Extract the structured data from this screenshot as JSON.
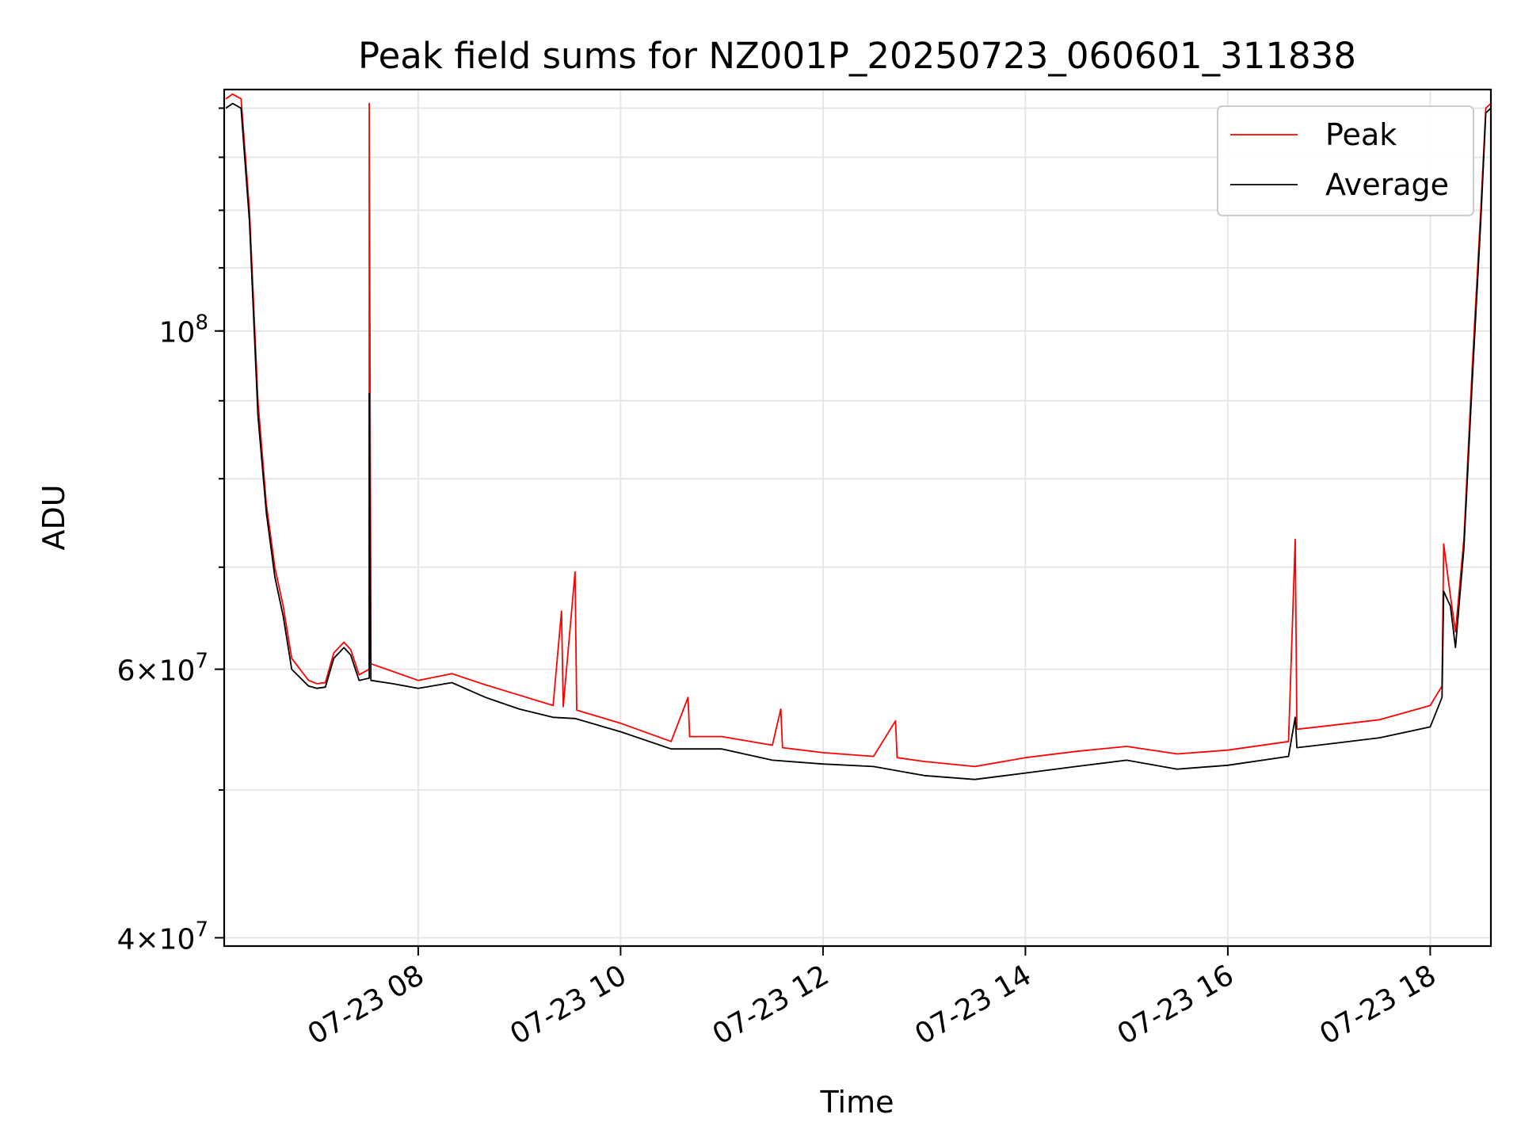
{
  "chart_data": {
    "type": "line",
    "title": "Peak field sums for NZ001P_20250723_060601_311838",
    "xlabel": "Time",
    "ylabel": "ADU",
    "y_scale": "log",
    "grid": true,
    "legend_position": "top-right",
    "x_range": [
      "2025-07-23 06:05",
      "2025-07-23 18:36"
    ],
    "y_range": [
      39500000,
      144000000
    ],
    "x_ticks": [
      "07-23 08",
      "07-23 10",
      "07-23 12",
      "07-23 14",
      "07-23 16",
      "07-23 18"
    ],
    "y_ticks": [
      {
        "value": 40000000,
        "mantissa": "4",
        "exponent": "7"
      },
      {
        "value": 60000000,
        "mantissa": "6",
        "exponent": "7"
      },
      {
        "value": 100000000,
        "base": "10",
        "exponent": "8"
      }
    ],
    "series": [
      {
        "name": "Peak",
        "color": "#ff0000",
        "points": [
          [
            "07-23 06:06",
            142000000
          ],
          [
            "07-23 06:10",
            143000000
          ],
          [
            "07-23 06:15",
            142000000
          ],
          [
            "07-23 06:20",
            120000000
          ],
          [
            "07-23 06:25",
            90000000
          ],
          [
            "07-23 06:30",
            77000000
          ],
          [
            "07-23 06:35",
            70000000
          ],
          [
            "07-23 06:40",
            66000000
          ],
          [
            "07-23 06:45",
            61000000
          ],
          [
            "07-23 06:55",
            59000000
          ],
          [
            "07-23 07:00",
            58700000
          ],
          [
            "07-23 07:05",
            58800000
          ],
          [
            "07-23 07:10",
            61500000
          ],
          [
            "07-23 07:16",
            62500000
          ],
          [
            "07-23 07:20",
            61800000
          ],
          [
            "07-23 07:25",
            59500000
          ],
          [
            "07-23 07:31",
            60000000
          ],
          [
            "07-23 07:31",
            141000000
          ],
          [
            "07-23 07:32",
            60500000
          ],
          [
            "07-23 07:45",
            59800000
          ],
          [
            "07-23 08:00",
            59000000
          ],
          [
            "07-23 08:20",
            59600000
          ],
          [
            "07-23 08:40",
            58600000
          ],
          [
            "07-23 09:00",
            57700000
          ],
          [
            "07-23 09:20",
            56800000
          ],
          [
            "07-23 09:25",
            65500000
          ],
          [
            "07-23 09:26",
            56700000
          ],
          [
            "07-23 09:33",
            69500000
          ],
          [
            "07-23 09:34",
            56400000
          ],
          [
            "07-23 10:00",
            55300000
          ],
          [
            "07-23 10:30",
            53800000
          ],
          [
            "07-23 10:40",
            57500000
          ],
          [
            "07-23 10:41",
            54200000
          ],
          [
            "07-23 11:00",
            54200000
          ],
          [
            "07-23 11:30",
            53500000
          ],
          [
            "07-23 11:35",
            56500000
          ],
          [
            "07-23 11:36",
            53300000
          ],
          [
            "07-23 12:00",
            52900000
          ],
          [
            "07-23 12:30",
            52600000
          ],
          [
            "07-23 12:43",
            55500000
          ],
          [
            "07-23 12:44",
            52500000
          ],
          [
            "07-23 13:00",
            52200000
          ],
          [
            "07-23 13:30",
            51800000
          ],
          [
            "07-23 14:00",
            52500000
          ],
          [
            "07-23 14:30",
            53000000
          ],
          [
            "07-23 15:00",
            53400000
          ],
          [
            "07-23 15:30",
            52800000
          ],
          [
            "07-23 16:00",
            53100000
          ],
          [
            "07-23 16:36",
            53800000
          ],
          [
            "07-23 16:40",
            73000000
          ],
          [
            "07-23 16:41",
            54800000
          ],
          [
            "07-23 17:00",
            55100000
          ],
          [
            "07-23 17:30",
            55600000
          ],
          [
            "07-23 18:00",
            56800000
          ],
          [
            "07-23 18:07",
            58500000
          ],
          [
            "07-23 18:08",
            72500000
          ],
          [
            "07-23 18:12",
            67000000
          ],
          [
            "07-23 18:15",
            63500000
          ],
          [
            "07-23 18:20",
            73000000
          ],
          [
            "07-23 18:25",
            95000000
          ],
          [
            "07-23 18:30",
            120000000
          ],
          [
            "07-23 18:33",
            140000000
          ],
          [
            "07-23 18:36",
            141000000
          ]
        ]
      },
      {
        "name": "Average",
        "color": "#000000",
        "points": [
          [
            "07-23 06:06",
            140000000
          ],
          [
            "07-23 06:10",
            141000000
          ],
          [
            "07-23 06:15",
            140000000
          ],
          [
            "07-23 06:20",
            118000000
          ],
          [
            "07-23 06:25",
            88000000
          ],
          [
            "07-23 06:30",
            76000000
          ],
          [
            "07-23 06:35",
            69000000
          ],
          [
            "07-23 06:40",
            65000000
          ],
          [
            "07-23 06:45",
            60000000
          ],
          [
            "07-23 06:55",
            58500000
          ],
          [
            "07-23 07:00",
            58300000
          ],
          [
            "07-23 07:05",
            58400000
          ],
          [
            "07-23 07:10",
            61000000
          ],
          [
            "07-23 07:16",
            62000000
          ],
          [
            "07-23 07:20",
            61300000
          ],
          [
            "07-23 07:25",
            59000000
          ],
          [
            "07-23 07:31",
            59200000
          ],
          [
            "07-23 07:31",
            91000000
          ],
          [
            "07-23 07:32",
            59000000
          ],
          [
            "07-23 07:45",
            58700000
          ],
          [
            "07-23 08:00",
            58300000
          ],
          [
            "07-23 08:20",
            58800000
          ],
          [
            "07-23 08:40",
            57500000
          ],
          [
            "07-23 09:00",
            56500000
          ],
          [
            "07-23 09:20",
            55800000
          ],
          [
            "07-23 09:33",
            55700000
          ],
          [
            "07-23 10:00",
            54600000
          ],
          [
            "07-23 10:30",
            53200000
          ],
          [
            "07-23 11:00",
            53200000
          ],
          [
            "07-23 11:30",
            52300000
          ],
          [
            "07-23 12:00",
            52000000
          ],
          [
            "07-23 12:30",
            51800000
          ],
          [
            "07-23 13:00",
            51100000
          ],
          [
            "07-23 13:30",
            50800000
          ],
          [
            "07-23 14:00",
            51300000
          ],
          [
            "07-23 14:30",
            51800000
          ],
          [
            "07-23 15:00",
            52300000
          ],
          [
            "07-23 15:30",
            51600000
          ],
          [
            "07-23 16:00",
            51900000
          ],
          [
            "07-23 16:36",
            52600000
          ],
          [
            "07-23 16:40",
            55800000
          ],
          [
            "07-23 16:41",
            53300000
          ],
          [
            "07-23 17:00",
            53600000
          ],
          [
            "07-23 17:30",
            54100000
          ],
          [
            "07-23 18:00",
            55000000
          ],
          [
            "07-23 18:07",
            57500000
          ],
          [
            "07-23 18:08",
            67500000
          ],
          [
            "07-23 18:12",
            66000000
          ],
          [
            "07-23 18:15",
            62000000
          ],
          [
            "07-23 18:20",
            72000000
          ],
          [
            "07-23 18:25",
            93000000
          ],
          [
            "07-23 18:30",
            118000000
          ],
          [
            "07-23 18:33",
            139000000
          ],
          [
            "07-23 18:36",
            140000000
          ]
        ]
      }
    ]
  }
}
